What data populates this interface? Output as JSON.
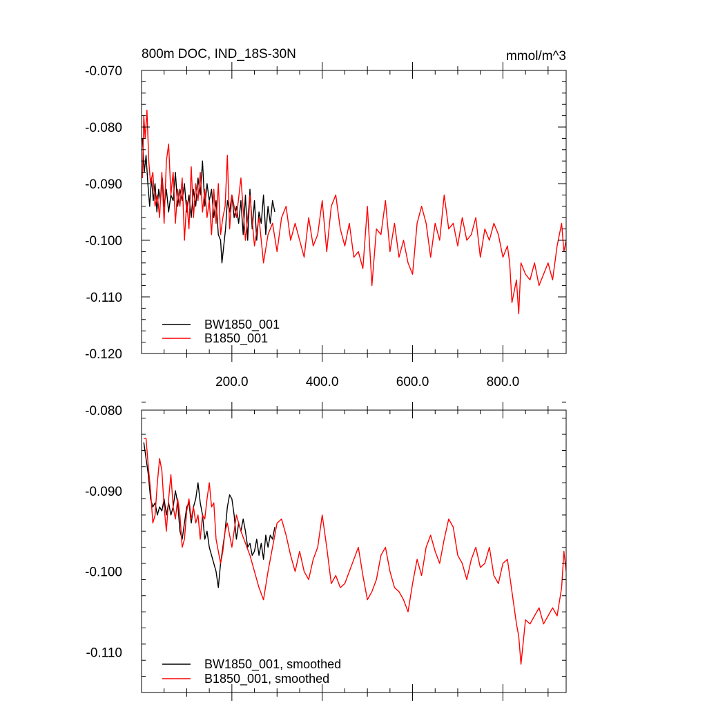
{
  "chart_data": [
    {
      "type": "line",
      "title": "800m DOC, IND_18S-30N",
      "units": "mmol/m^3",
      "xlim": [
        0,
        940
      ],
      "ylim": [
        -0.12,
        -0.07
      ],
      "x_ticks": [
        200,
        400,
        600,
        800
      ],
      "x_tick_labels": [
        "200.0",
        "400.0",
        "600.0",
        "800.0"
      ],
      "y_ticks": [
        -0.07,
        -0.08,
        -0.09,
        -0.1,
        -0.11,
        -0.12
      ],
      "y_tick_labels": [
        "-0.070",
        "-0.080",
        "-0.090",
        "-0.100",
        "-0.110",
        "-0.120"
      ],
      "legend_position": "bottom-left",
      "grid": false,
      "series": [
        {
          "name": "BW1850_001",
          "color": "#000000",
          "x": [
            2,
            6,
            10,
            14,
            18,
            22,
            26,
            30,
            34,
            38,
            42,
            46,
            50,
            55,
            60,
            65,
            70,
            75,
            80,
            85,
            90,
            95,
            100,
            105,
            110,
            115,
            120,
            125,
            130,
            135,
            140,
            145,
            150,
            155,
            160,
            165,
            170,
            175,
            178,
            182,
            186,
            190,
            195,
            200,
            205,
            210,
            215,
            220,
            225,
            230,
            235,
            240,
            245,
            250,
            255,
            260,
            265,
            270,
            275,
            280,
            285,
            290,
            295
          ],
          "y": [
            -0.082,
            -0.088,
            -0.085,
            -0.09,
            -0.094,
            -0.089,
            -0.093,
            -0.09,
            -0.095,
            -0.091,
            -0.093,
            -0.089,
            -0.094,
            -0.091,
            -0.095,
            -0.092,
            -0.093,
            -0.088,
            -0.094,
            -0.091,
            -0.093,
            -0.09,
            -0.095,
            -0.092,
            -0.096,
            -0.091,
            -0.094,
            -0.089,
            -0.092,
            -0.086,
            -0.094,
            -0.09,
            -0.093,
            -0.091,
            -0.096,
            -0.093,
            -0.099,
            -0.1,
            -0.104,
            -0.101,
            -0.098,
            -0.093,
            -0.095,
            -0.092,
            -0.096,
            -0.094,
            -0.097,
            -0.093,
            -0.099,
            -0.092,
            -0.1,
            -0.091,
            -0.098,
            -0.093,
            -0.1,
            -0.095,
            -0.097,
            -0.092,
            -0.099,
            -0.094,
            -0.097,
            -0.093,
            -0.095
          ]
        },
        {
          "name": "B1850_001",
          "color": "#ff0000",
          "x": [
            2,
            5,
            8,
            12,
            16,
            20,
            25,
            30,
            35,
            40,
            45,
            50,
            55,
            60,
            65,
            70,
            75,
            80,
            85,
            90,
            95,
            100,
            105,
            110,
            115,
            120,
            125,
            130,
            135,
            140,
            145,
            150,
            155,
            160,
            165,
            170,
            175,
            180,
            185,
            190,
            195,
            200,
            210,
            220,
            230,
            240,
            250,
            260,
            270,
            280,
            290,
            300,
            310,
            320,
            330,
            340,
            350,
            360,
            370,
            380,
            390,
            400,
            410,
            420,
            430,
            440,
            450,
            460,
            470,
            480,
            490,
            500,
            510,
            520,
            530,
            540,
            550,
            560,
            570,
            580,
            590,
            600,
            610,
            620,
            630,
            640,
            650,
            660,
            670,
            680,
            690,
            700,
            710,
            720,
            730,
            740,
            750,
            760,
            770,
            780,
            790,
            800,
            810,
            815,
            820,
            830,
            835,
            840,
            850,
            860,
            870,
            880,
            890,
            900,
            910,
            920,
            930,
            935,
            940
          ],
          "y": [
            -0.089,
            -0.078,
            -0.082,
            -0.077,
            -0.086,
            -0.09,
            -0.088,
            -0.094,
            -0.092,
            -0.096,
            -0.088,
            -0.097,
            -0.086,
            -0.083,
            -0.092,
            -0.088,
            -0.097,
            -0.091,
            -0.094,
            -0.089,
            -0.1,
            -0.093,
            -0.098,
            -0.087,
            -0.096,
            -0.09,
            -0.093,
            -0.088,
            -0.095,
            -0.091,
            -0.096,
            -0.093,
            -0.099,
            -0.091,
            -0.097,
            -0.09,
            -0.099,
            -0.096,
            -0.094,
            -0.085,
            -0.098,
            -0.092,
            -0.096,
            -0.089,
            -0.1,
            -0.092,
            -0.101,
            -0.096,
            -0.104,
            -0.099,
            -0.097,
            -0.102,
            -0.096,
            -0.094,
            -0.1,
            -0.097,
            -0.1,
            -0.103,
            -0.096,
            -0.101,
            -0.099,
            -0.093,
            -0.102,
            -0.094,
            -0.092,
            -0.098,
            -0.101,
            -0.097,
            -0.103,
            -0.102,
            -0.105,
            -0.094,
            -0.108,
            -0.098,
            -0.099,
            -0.093,
            -0.102,
            -0.097,
            -0.103,
            -0.1,
            -0.104,
            -0.106,
            -0.097,
            -0.094,
            -0.097,
            -0.103,
            -0.097,
            -0.1,
            -0.092,
            -0.098,
            -0.097,
            -0.101,
            -0.096,
            -0.1,
            -0.099,
            -0.096,
            -0.103,
            -0.098,
            -0.1,
            -0.097,
            -0.099,
            -0.103,
            -0.101,
            -0.104,
            -0.111,
            -0.107,
            -0.113,
            -0.104,
            -0.106,
            -0.107,
            -0.104,
            -0.108,
            -0.106,
            -0.104,
            -0.107,
            -0.101,
            -0.097,
            -0.102,
            -0.1
          ]
        }
      ]
    },
    {
      "type": "line",
      "title": "",
      "xlim": [
        0,
        940
      ],
      "ylim": [
        -0.115,
        -0.08
      ],
      "x_ticks": [
        200,
        400,
        600,
        800
      ],
      "x_tick_labels": [
        "",
        "",
        "",
        ""
      ],
      "y_ticks": [
        -0.08,
        -0.09,
        -0.1,
        -0.11
      ],
      "y_tick_labels": [
        "-0.080",
        "-0.090",
        "-0.100",
        "-0.110"
      ],
      "legend_position": "bottom-left",
      "grid": false,
      "series": [
        {
          "name": "BW1850_001, smoothed",
          "color": "#000000",
          "x": [
            5,
            10,
            15,
            20,
            25,
            30,
            35,
            40,
            45,
            50,
            55,
            60,
            65,
            70,
            75,
            80,
            85,
            90,
            95,
            100,
            105,
            110,
            115,
            120,
            125,
            130,
            135,
            140,
            145,
            150,
            155,
            160,
            165,
            170,
            175,
            180,
            185,
            190,
            195,
            200,
            205,
            210,
            215,
            220,
            225,
            230,
            235,
            240,
            245,
            250,
            255,
            260,
            265,
            270,
            275,
            280,
            285,
            290,
            295
          ],
          "y": [
            -0.084,
            -0.086,
            -0.088,
            -0.091,
            -0.092,
            -0.0915,
            -0.093,
            -0.092,
            -0.0925,
            -0.091,
            -0.093,
            -0.0915,
            -0.093,
            -0.092,
            -0.09,
            -0.0915,
            -0.095,
            -0.096,
            -0.094,
            -0.092,
            -0.0915,
            -0.094,
            -0.092,
            -0.091,
            -0.089,
            -0.0915,
            -0.093,
            -0.096,
            -0.095,
            -0.097,
            -0.098,
            -0.099,
            -0.1,
            -0.102,
            -0.099,
            -0.097,
            -0.095,
            -0.092,
            -0.0905,
            -0.091,
            -0.093,
            -0.096,
            -0.094,
            -0.095,
            -0.0935,
            -0.095,
            -0.097,
            -0.0965,
            -0.098,
            -0.0975,
            -0.096,
            -0.098,
            -0.0965,
            -0.0985,
            -0.0955,
            -0.097,
            -0.0955,
            -0.096,
            -0.0945
          ]
        },
        {
          "name": "B1850_001, smoothed",
          "color": "#ff0000",
          "x": [
            5,
            10,
            15,
            20,
            25,
            30,
            35,
            40,
            45,
            50,
            55,
            60,
            65,
            70,
            75,
            80,
            85,
            90,
            95,
            100,
            105,
            110,
            115,
            120,
            125,
            130,
            135,
            140,
            145,
            150,
            155,
            160,
            165,
            170,
            175,
            180,
            185,
            190,
            195,
            200,
            210,
            220,
            230,
            240,
            250,
            260,
            270,
            280,
            290,
            300,
            310,
            320,
            330,
            340,
            350,
            360,
            370,
            380,
            390,
            400,
            410,
            420,
            430,
            440,
            450,
            460,
            470,
            480,
            490,
            500,
            510,
            520,
            530,
            540,
            550,
            560,
            570,
            580,
            590,
            600,
            610,
            620,
            630,
            640,
            650,
            660,
            670,
            680,
            690,
            700,
            710,
            720,
            730,
            740,
            750,
            760,
            770,
            780,
            790,
            800,
            810,
            820,
            830,
            835,
            840,
            850,
            860,
            870,
            880,
            890,
            900,
            910,
            920,
            930,
            935,
            940
          ],
          "y": [
            -0.0835,
            -0.0835,
            -0.087,
            -0.09,
            -0.094,
            -0.093,
            -0.089,
            -0.086,
            -0.0875,
            -0.092,
            -0.095,
            -0.091,
            -0.088,
            -0.092,
            -0.0935,
            -0.091,
            -0.093,
            -0.097,
            -0.096,
            -0.0925,
            -0.091,
            -0.0935,
            -0.092,
            -0.094,
            -0.093,
            -0.096,
            -0.093,
            -0.0935,
            -0.091,
            -0.089,
            -0.092,
            -0.0915,
            -0.096,
            -0.0975,
            -0.099,
            -0.0975,
            -0.095,
            -0.094,
            -0.0955,
            -0.097,
            -0.093,
            -0.095,
            -0.0965,
            -0.098,
            -0.1,
            -0.102,
            -0.1035,
            -0.1,
            -0.097,
            -0.094,
            -0.0935,
            -0.0955,
            -0.098,
            -0.1,
            -0.0975,
            -0.1,
            -0.101,
            -0.0985,
            -0.097,
            -0.093,
            -0.097,
            -0.1015,
            -0.1005,
            -0.102,
            -0.1015,
            -0.1,
            -0.0985,
            -0.097,
            -0.1005,
            -0.1035,
            -0.1025,
            -0.101,
            -0.098,
            -0.097,
            -0.1,
            -0.102,
            -0.1025,
            -0.1035,
            -0.105,
            -0.1015,
            -0.0985,
            -0.1005,
            -0.097,
            -0.0955,
            -0.0975,
            -0.099,
            -0.096,
            -0.0935,
            -0.0945,
            -0.098,
            -0.099,
            -0.101,
            -0.0985,
            -0.097,
            -0.0995,
            -0.099,
            -0.097,
            -0.1005,
            -0.1015,
            -0.099,
            -0.0985,
            -0.1025,
            -0.1065,
            -0.108,
            -0.1115,
            -0.106,
            -0.1065,
            -0.1055,
            -0.1045,
            -0.1065,
            -0.1055,
            -0.1045,
            -0.1055,
            -0.102,
            -0.0975,
            -0.1
          ]
        }
      ]
    }
  ]
}
